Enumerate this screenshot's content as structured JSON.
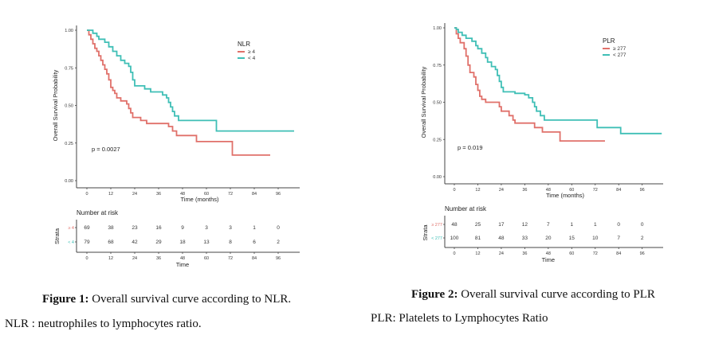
{
  "figures": [
    {
      "caption_label": "Figure 1:",
      "caption_text": " Overall survival curve according to NLR.",
      "note": "NLR : neutrophiles to lymphocytes ratio."
    },
    {
      "caption_label": "Figure 2:",
      "caption_text": " Overall survival curve according to PLR",
      "note": "PLR: Platelets to Lymphocytes Ratio"
    }
  ],
  "chart_data": [
    {
      "type": "line",
      "subtype": "kaplan-meier-step",
      "title": "",
      "xlabel": "Time (months)",
      "ylabel": "Overall Survival Probability",
      "xlim": [
        0,
        104
      ],
      "ylim": [
        0,
        1
      ],
      "xticks": [
        0,
        12,
        24,
        36,
        48,
        60,
        72,
        84,
        96
      ],
      "yticks": [
        "0.00",
        "0.25",
        "0.50",
        "0.75",
        "1.00"
      ],
      "grid": false,
      "legend_title": "NLR",
      "legend_position": "top-right",
      "annotation": "p = 0.0027",
      "series": [
        {
          "name": "≥ 4",
          "color": "#E0706A",
          "points": [
            [
              0,
              1.0
            ],
            [
              1,
              0.97
            ],
            [
              2,
              0.94
            ],
            [
              3,
              0.91
            ],
            [
              4,
              0.88
            ],
            [
              5,
              0.86
            ],
            [
              6,
              0.83
            ],
            [
              7,
              0.8
            ],
            [
              8,
              0.77
            ],
            [
              9,
              0.74
            ],
            [
              10,
              0.71
            ],
            [
              11,
              0.67
            ],
            [
              12,
              0.62
            ],
            [
              13,
              0.6
            ],
            [
              14,
              0.58
            ],
            [
              15,
              0.55
            ],
            [
              17,
              0.53
            ],
            [
              20,
              0.51
            ],
            [
              21,
              0.48
            ],
            [
              22,
              0.45
            ],
            [
              23,
              0.42
            ],
            [
              27,
              0.4
            ],
            [
              30,
              0.38
            ],
            [
              41,
              0.36
            ],
            [
              43,
              0.33
            ],
            [
              45,
              0.3
            ],
            [
              55,
              0.26
            ],
            [
              73,
              0.17
            ],
            [
              92,
              0.17
            ]
          ]
        },
        {
          "name": "< 4",
          "color": "#3FBFB6",
          "points": [
            [
              0,
              1.0
            ],
            [
              3,
              0.98
            ],
            [
              5,
              0.96
            ],
            [
              6,
              0.94
            ],
            [
              9,
              0.92
            ],
            [
              11,
              0.89
            ],
            [
              13,
              0.86
            ],
            [
              15,
              0.83
            ],
            [
              17,
              0.8
            ],
            [
              19,
              0.78
            ],
            [
              21,
              0.76
            ],
            [
              22,
              0.72
            ],
            [
              23,
              0.67
            ],
            [
              24,
              0.63
            ],
            [
              29,
              0.61
            ],
            [
              32,
              0.59
            ],
            [
              38,
              0.57
            ],
            [
              40,
              0.55
            ],
            [
              41,
              0.52
            ],
            [
              42,
              0.49
            ],
            [
              43,
              0.46
            ],
            [
              44,
              0.43
            ],
            [
              46,
              0.4
            ],
            [
              65,
              0.33
            ],
            [
              104,
              0.33
            ]
          ]
        }
      ],
      "risk_table": {
        "title": "Number at risk",
        "ylabel": "Strata",
        "xlabel": "Time",
        "times": [
          0,
          12,
          24,
          36,
          48,
          60,
          72,
          84,
          96
        ],
        "rows": [
          {
            "label": "≥ 4",
            "color": "#E0706A",
            "values": [
              69,
              38,
              23,
              16,
              9,
              3,
              3,
              1,
              0
            ]
          },
          {
            "label": "< 4",
            "color": "#3FBFB6",
            "values": [
              79,
              68,
              42,
              29,
              18,
              13,
              8,
              6,
              2
            ]
          }
        ]
      }
    },
    {
      "type": "line",
      "subtype": "kaplan-meier-step",
      "title": "",
      "xlabel": "Time (months)",
      "ylabel": "Overall Survival Probability",
      "xlim": [
        0,
        106
      ],
      "ylim": [
        0,
        1
      ],
      "xticks": [
        0,
        12,
        24,
        36,
        48,
        60,
        72,
        84,
        96
      ],
      "yticks": [
        "0.00",
        "0.25",
        "0.50",
        "0.75",
        "1.00"
      ],
      "grid": false,
      "legend_title": "PLR",
      "legend_position": "top-right",
      "annotation": "p = 0.019",
      "series": [
        {
          "name": "≥ 277",
          "color": "#E0706A",
          "points": [
            [
              0,
              1.0
            ],
            [
              1,
              0.96
            ],
            [
              2,
              0.93
            ],
            [
              3,
              0.9
            ],
            [
              5,
              0.86
            ],
            [
              6,
              0.81
            ],
            [
              7,
              0.75
            ],
            [
              8,
              0.7
            ],
            [
              10,
              0.67
            ],
            [
              11,
              0.62
            ],
            [
              12,
              0.58
            ],
            [
              13,
              0.54
            ],
            [
              14,
              0.52
            ],
            [
              16,
              0.5
            ],
            [
              23,
              0.47
            ],
            [
              24,
              0.44
            ],
            [
              28,
              0.41
            ],
            [
              30,
              0.38
            ],
            [
              31,
              0.36
            ],
            [
              41,
              0.33
            ],
            [
              45,
              0.3
            ],
            [
              54,
              0.24
            ],
            [
              77,
              0.24
            ]
          ]
        },
        {
          "name": "< 277",
          "color": "#3FBFB6",
          "points": [
            [
              0,
              1.0
            ],
            [
              1,
              0.99
            ],
            [
              2,
              0.97
            ],
            [
              4,
              0.95
            ],
            [
              6,
              0.93
            ],
            [
              9,
              0.91
            ],
            [
              11,
              0.88
            ],
            [
              12,
              0.86
            ],
            [
              14,
              0.83
            ],
            [
              16,
              0.8
            ],
            [
              17,
              0.77
            ],
            [
              19,
              0.74
            ],
            [
              21,
              0.72
            ],
            [
              22,
              0.68
            ],
            [
              23,
              0.64
            ],
            [
              24,
              0.6
            ],
            [
              25,
              0.57
            ],
            [
              31,
              0.56
            ],
            [
              36,
              0.55
            ],
            [
              38,
              0.53
            ],
            [
              40,
              0.5
            ],
            [
              41,
              0.47
            ],
            [
              42,
              0.44
            ],
            [
              44,
              0.41
            ],
            [
              46,
              0.38
            ],
            [
              73,
              0.33
            ],
            [
              85,
              0.29
            ],
            [
              106,
              0.29
            ]
          ]
        }
      ],
      "risk_table": {
        "title": "Number at risk",
        "ylabel": "Strata",
        "xlabel": "Time",
        "times": [
          0,
          12,
          24,
          36,
          48,
          60,
          72,
          84,
          96
        ],
        "rows": [
          {
            "label": "≥ 277",
            "color": "#E0706A",
            "values": [
              48,
              25,
              17,
              12,
              7,
              1,
              1,
              0,
              0
            ]
          },
          {
            "label": "< 277",
            "color": "#3FBFB6",
            "values": [
              100,
              81,
              48,
              33,
              20,
              15,
              10,
              7,
              2
            ]
          }
        ]
      }
    }
  ]
}
